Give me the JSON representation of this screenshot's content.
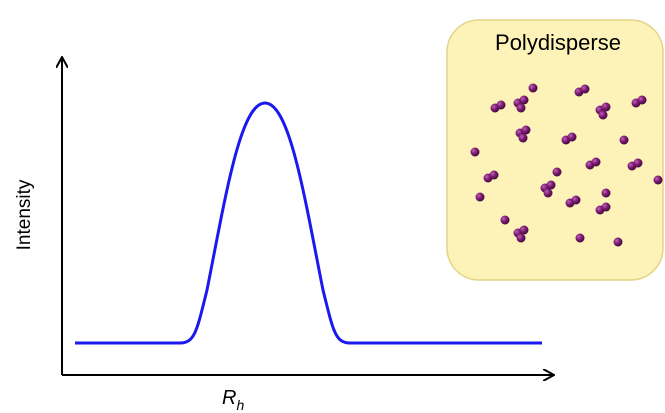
{
  "axes": {
    "y_label": "Intensity",
    "x_label": "R",
    "x_label_subscript": "h"
  },
  "panel": {
    "title": "Polydisperse"
  }
}
